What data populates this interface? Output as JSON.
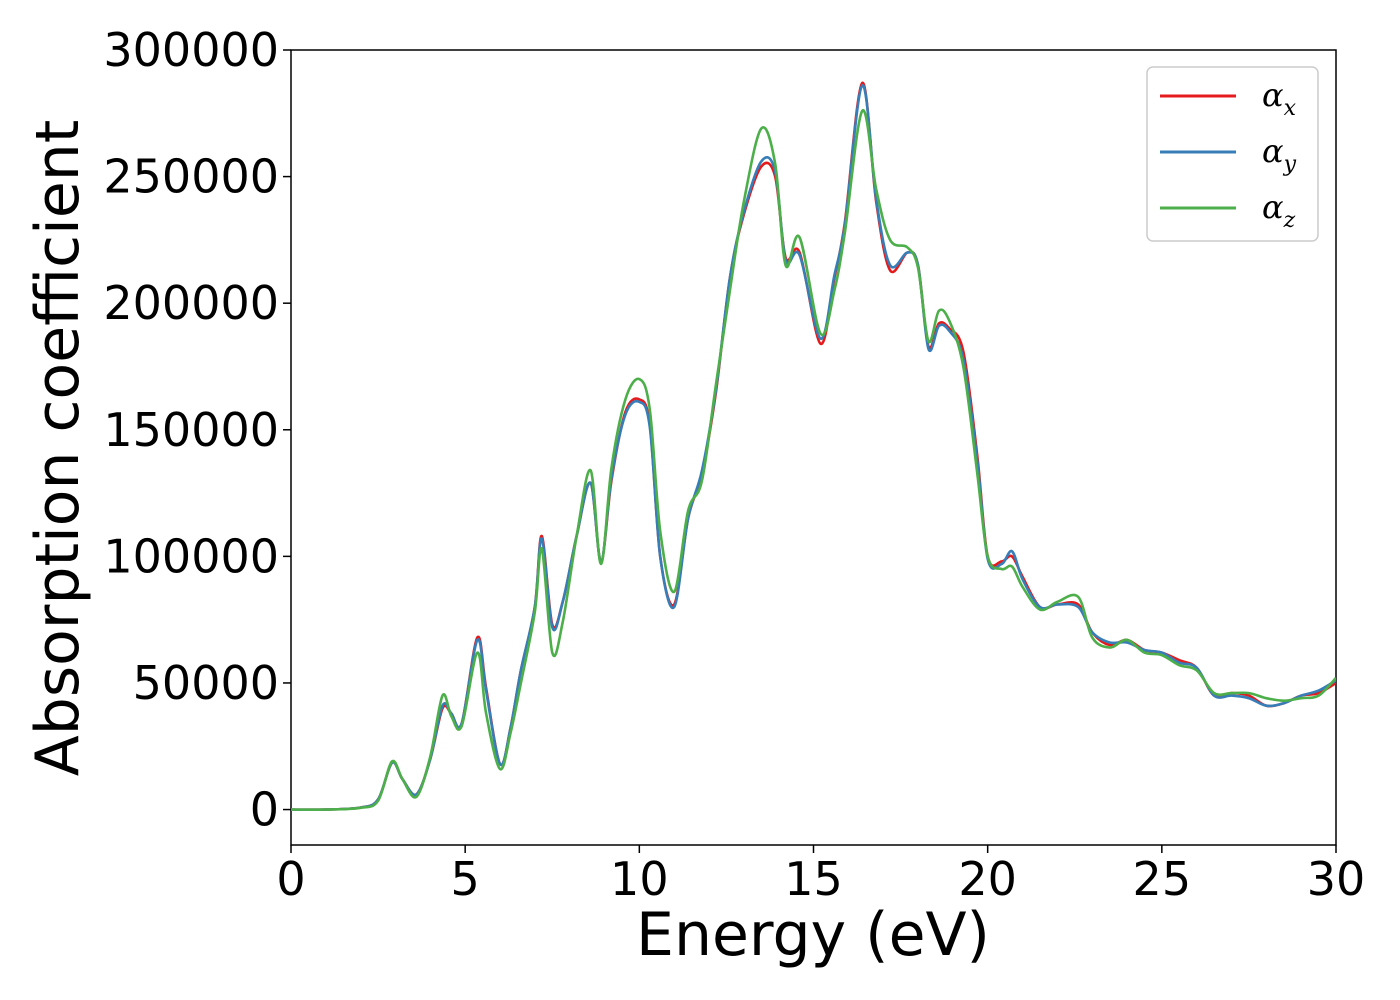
{
  "chart_data": {
    "type": "line",
    "xlabel": "Energy (eV)",
    "ylabel": "Absorption coefficient",
    "xlim": [
      0,
      30
    ],
    "ylim": [
      -14000,
      300000
    ],
    "x_ticks": [
      "0",
      "5",
      "10",
      "15",
      "20",
      "25",
      "30"
    ],
    "y_ticks": [
      "0",
      "50000",
      "100000",
      "150000",
      "200000",
      "250000",
      "300000"
    ],
    "grid": false,
    "legend_position": "top-right",
    "x": [
      0,
      1,
      2,
      2.5,
      2.9,
      3.2,
      3.6,
      4.0,
      4.35,
      4.6,
      4.9,
      5.35,
      5.6,
      6.0,
      6.3,
      6.6,
      7.0,
      7.2,
      7.5,
      7.8,
      8.2,
      8.6,
      8.9,
      9.2,
      9.6,
      10.0,
      10.3,
      10.6,
      11.0,
      11.4,
      11.8,
      12.2,
      12.6,
      13.0,
      13.5,
      13.9,
      14.2,
      14.6,
      15.2,
      15.6,
      15.9,
      16.4,
      16.8,
      17.2,
      17.7,
      18.0,
      18.3,
      18.6,
      18.9,
      19.3,
      19.7,
      20.0,
      20.4,
      20.7,
      21.0,
      21.5,
      22.0,
      22.6,
      23.0,
      23.5,
      24.0,
      24.5,
      25.0,
      25.5,
      26.0,
      26.5,
      27.0,
      27.5,
      28.0,
      28.5,
      29.0,
      29.5,
      30.0
    ],
    "series": [
      {
        "name": "α",
        "subscript": "x",
        "color": "#e41a1c",
        "values": [
          0,
          0,
          800,
          4000,
          18500,
          12000,
          6000,
          20000,
          40000,
          38000,
          34000,
          68000,
          48000,
          18000,
          32000,
          55000,
          80000,
          108000,
          73000,
          82000,
          108000,
          129000,
          98000,
          130000,
          157000,
          162000,
          152000,
          100000,
          81000,
          115000,
          133000,
          165000,
          210000,
          235000,
          254000,
          250000,
          218000,
          220000,
          184000,
          210000,
          232000,
          287000,
          240000,
          213000,
          220000,
          215000,
          183000,
          192000,
          190000,
          181000,
          140000,
          100000,
          98000,
          100000,
          92000,
          80000,
          81000,
          81000,
          70000,
          65000,
          67000,
          63000,
          62000,
          59000,
          56000,
          45000,
          46000,
          45000,
          41000,
          42000,
          45000,
          46000,
          50000
        ]
      },
      {
        "name": "α",
        "subscript": "y",
        "color": "#377eb8",
        "values": [
          0,
          0,
          800,
          4000,
          18500,
          12000,
          6000,
          20000,
          41000,
          38000,
          34000,
          67000,
          47000,
          18000,
          32000,
          55000,
          80000,
          107000,
          72000,
          82000,
          108000,
          129000,
          98000,
          131000,
          156000,
          161000,
          151000,
          100000,
          80000,
          115000,
          134000,
          166000,
          210000,
          236000,
          256000,
          252000,
          217000,
          219000,
          186000,
          211000,
          231000,
          286000,
          241000,
          215000,
          220000,
          215000,
          182000,
          191000,
          189000,
          178000,
          138000,
          99000,
          97000,
          102000,
          91000,
          80000,
          81000,
          80000,
          70000,
          66000,
          66000,
          63000,
          62000,
          58000,
          56000,
          45000,
          45000,
          44000,
          41000,
          42000,
          45000,
          47000,
          51000
        ]
      },
      {
        "name": "α",
        "subscript": "z",
        "color": "#4daf4a",
        "values": [
          0,
          0,
          700,
          3500,
          19000,
          12000,
          5000,
          21000,
          45000,
          37000,
          33000,
          62000,
          38000,
          16000,
          30000,
          50000,
          78000,
          103000,
          62000,
          74000,
          108000,
          134000,
          97000,
          135000,
          162000,
          170000,
          158000,
          110000,
          86000,
          118000,
          130000,
          168000,
          205000,
          240000,
          269000,
          255000,
          215000,
          226000,
          188000,
          205000,
          228000,
          276000,
          245000,
          225000,
          222000,
          214000,
          185000,
          197000,
          193000,
          175000,
          133000,
          100000,
          95000,
          96000,
          88000,
          79000,
          82000,
          84000,
          68000,
          64000,
          67000,
          62000,
          61000,
          57000,
          55000,
          46000,
          46000,
          46000,
          44000,
          43000,
          44000,
          45000,
          52000
        ]
      }
    ]
  }
}
